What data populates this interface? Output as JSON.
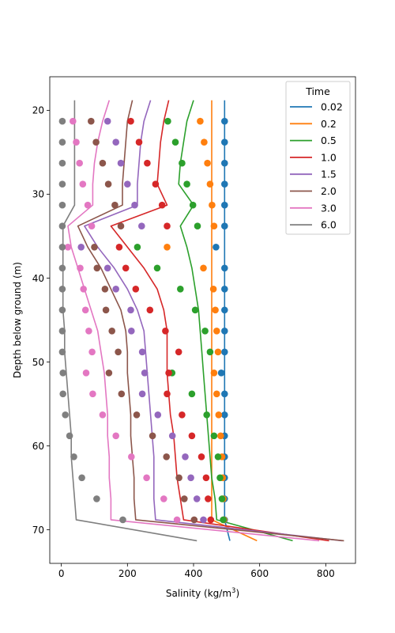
{
  "chart_data": {
    "type": "line",
    "title": "",
    "xlabel": "Salinity (kg/m",
    "xlabel_sup": "3",
    "xlabel_suffix": ")",
    "ylabel": "Depth below ground (m)",
    "xlim": [
      -35,
      890
    ],
    "ylim": [
      74,
      16
    ],
    "xticks": [
      0,
      200,
      400,
      600,
      800
    ],
    "yticks": [
      20,
      30,
      40,
      50,
      60,
      70
    ],
    "y_inverted": true,
    "legend": {
      "title": "Time",
      "placement": "top-right"
    },
    "depths": [
      18.8,
      21.3,
      23.8,
      26.3,
      28.8,
      31.3,
      33.8,
      36.3,
      38.8,
      41.3,
      43.8,
      46.3,
      48.8,
      51.3,
      53.8,
      56.3,
      58.8,
      61.3,
      63.8,
      66.3,
      68.8,
      71.3
    ],
    "point_depths": [
      21.3,
      23.8,
      26.3,
      28.8,
      31.3,
      33.8,
      36.3,
      38.8,
      41.3,
      43.8,
      46.3,
      48.8,
      51.3,
      53.8,
      56.3,
      58.8,
      61.3,
      63.8,
      66.3,
      68.8
    ],
    "series": [
      {
        "name": "0.02",
        "color": "#1f77b4",
        "line": [
          494,
          494,
          494,
          494,
          494,
          494,
          494,
          494,
          494,
          494,
          494,
          494,
          494,
          494,
          494,
          494,
          494,
          494,
          494,
          494,
          494,
          510
        ],
        "points": [
          494,
          494,
          494,
          494,
          494,
          494,
          468,
          494,
          494,
          494,
          494,
          494,
          484,
          494,
          494,
          494,
          494,
          494,
          494,
          494
        ]
      },
      {
        "name": "0.2",
        "color": "#ff7f0e",
        "line": [
          455,
          455,
          455,
          455,
          455,
          455,
          455,
          455,
          455,
          455,
          455,
          455,
          455,
          455,
          455,
          455,
          455,
          455,
          455,
          455,
          455,
          592
        ],
        "points": [
          420,
          432,
          442,
          450,
          456,
          462,
          320,
          430,
          460,
          466,
          470,
          474,
          462,
          470,
          476,
          482,
          486,
          488,
          490,
          492
        ]
      },
      {
        "name": "0.5",
        "color": "#2ca02c",
        "line": [
          400,
          380,
          370,
          360,
          355,
          400,
          360,
          380,
          395,
          405,
          415,
          420,
          425,
          430,
          435,
          440,
          445,
          450,
          455,
          465,
          470,
          700
        ],
        "points": [
          322,
          345,
          365,
          380,
          398,
          412,
          230,
          290,
          360,
          405,
          435,
          450,
          335,
          395,
          440,
          462,
          474,
          480,
          486,
          490
        ]
      },
      {
        "name": "1.0",
        "color": "#d62728",
        "line": [
          325,
          310,
          300,
          295,
          290,
          320,
          150,
          200,
          250,
          290,
          310,
          320,
          320,
          320,
          325,
          330,
          340,
          345,
          350,
          360,
          370,
          810
        ],
        "points": [
          210,
          235,
          260,
          285,
          305,
          320,
          175,
          195,
          225,
          268,
          315,
          355,
          325,
          320,
          365,
          395,
          424,
          438,
          444,
          452
        ]
      },
      {
        "name": "1.5",
        "color": "#9467bd",
        "line": [
          270,
          250,
          240,
          235,
          230,
          230,
          70,
          110,
          160,
          200,
          230,
          250,
          255,
          260,
          265,
          270,
          275,
          280,
          280,
          280,
          285,
          850
        ],
        "points": [
          140,
          165,
          180,
          200,
          222,
          243,
          60,
          140,
          165,
          210,
          212,
          245,
          252,
          245,
          292,
          336,
          375,
          392,
          410,
          430
        ]
      },
      {
        "name": "2.0",
        "color": "#8c564b",
        "line": [
          215,
          200,
          195,
          190,
          185,
          185,
          50,
          80,
          120,
          150,
          180,
          195,
          200,
          200,
          205,
          210,
          210,
          215,
          220,
          220,
          225,
          855
        ],
        "points": [
          90,
          105,
          125,
          142,
          162,
          180,
          100,
          108,
          132,
          135,
          153,
          172,
          144,
          182,
          228,
          276,
          318,
          356,
          372,
          402
        ]
      },
      {
        "name": "3.0",
        "color": "#e377c2",
        "line": [
          145,
          125,
          110,
          100,
          95,
          95,
          20,
          30,
          50,
          70,
          90,
          110,
          120,
          130,
          135,
          140,
          140,
          145,
          145,
          150,
          150,
          780
        ],
        "points": [
          35,
          45,
          55,
          65,
          80,
          92,
          20,
          57,
          67,
          73,
          83,
          93,
          75,
          95,
          125,
          165,
          212,
          258,
          310,
          350
        ]
      },
      {
        "name": "6.0",
        "color": "#7f7f7f",
        "line": [
          40,
          40,
          40,
          40,
          40,
          40,
          5,
          5,
          5,
          5,
          5,
          10,
          10,
          15,
          20,
          25,
          30,
          30,
          35,
          40,
          45,
          410
        ],
        "points": [
          3,
          3,
          3,
          3,
          3,
          3,
          3,
          3,
          3,
          3,
          3,
          3,
          5,
          5,
          12,
          25,
          38,
          62,
          107,
          186
        ]
      }
    ]
  }
}
